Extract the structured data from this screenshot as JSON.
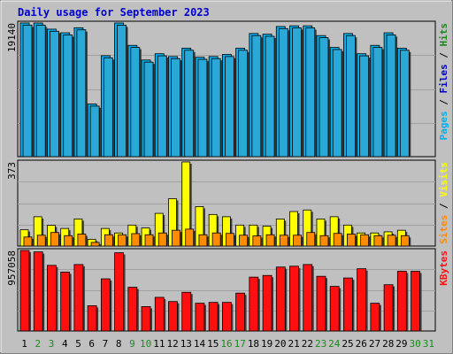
{
  "chart_data": {
    "type": "bar",
    "title": "Daily usage for September 2023",
    "categories": [
      "1",
      "2",
      "3",
      "4",
      "5",
      "6",
      "7",
      "8",
      "9",
      "10",
      "11",
      "12",
      "13",
      "14",
      "15",
      "16",
      "17",
      "18",
      "19",
      "20",
      "21",
      "22",
      "23",
      "24",
      "25",
      "26",
      "27",
      "28",
      "29",
      "30",
      "31"
    ],
    "weekend_days": [
      "2",
      "3",
      "9",
      "10",
      "16",
      "17",
      "23",
      "24",
      "30",
      "31"
    ],
    "colors": {
      "background": "#c0c0c0",
      "title": "#0000cc",
      "weekday_label": "#000000",
      "weekend_label": "#1a8a1a",
      "hits": "#00b0f0",
      "files": "#2aa8d8",
      "pages": "#00b0f0",
      "visits": "#ffff00",
      "sites": "#ff8c00",
      "kbytes": "#ff1010"
    },
    "panels": [
      {
        "id": "hits_files_pages",
        "ymax_label": "19140",
        "ymax": 19140,
        "legend": [
          {
            "text": "Hits",
            "color": "#1a8a1a"
          },
          {
            "text": "Files",
            "color": "#0000cc"
          },
          {
            "text": "Pages",
            "color": "#00b0f0"
          }
        ],
        "series": [
          {
            "name": "Hits",
            "values": [
              19140,
              19140,
              18260,
              17740,
              18460,
              7540,
              14460,
              19140,
              15940,
              13840,
              14740,
              14340,
              15540,
              14240,
              14340,
              14640,
              15540,
              17640,
              17540,
              18640,
              18740,
              18740,
              17340,
              15640,
              17640,
              14740,
              15940,
              17740,
              15540,
              0,
              0
            ]
          },
          {
            "name": "Files",
            "values": [
              18840,
              18840,
              17960,
              17440,
              18160,
              7240,
              14160,
              18840,
              15640,
              13540,
              14440,
              14040,
              15240,
              13940,
              14040,
              14340,
              15240,
              17340,
              17240,
              18340,
              18440,
              18440,
              17040,
              15340,
              17340,
              14440,
              15640,
              17440,
              15240,
              0,
              0
            ]
          }
        ]
      },
      {
        "id": "visits_sites",
        "ymax_label": "373",
        "ymax": 373,
        "legend": [
          {
            "text": "Visits",
            "color": "#ffff00"
          },
          {
            "text": "Sites",
            "color": "#ff8c00"
          }
        ],
        "series": [
          {
            "name": "Visits",
            "values": [
              72,
              130,
              92,
              78,
              120,
              30,
              78,
              58,
              93,
              80,
              145,
              210,
              373,
              175,
              140,
              130,
              93,
              93,
              88,
              120,
              153,
              160,
              120,
              130,
              93,
              58,
              58,
              63,
              70,
              0,
              0
            ]
          },
          {
            "name": "Sites",
            "values": [
              40,
              48,
              60,
              46,
              53,
              16,
              50,
              50,
              55,
              50,
              58,
              70,
              75,
              50,
              58,
              56,
              48,
              45,
              50,
              48,
              48,
              60,
              46,
              56,
              53,
              50,
              46,
              48,
              46,
              0,
              0
            ]
          }
        ]
      },
      {
        "id": "kbytes",
        "ymax_label": "957058",
        "ymax": 957058,
        "legend": [
          {
            "text": "KBytes",
            "color": "#ff1010"
          }
        ],
        "series": [
          {
            "name": "KBytes",
            "values": [
              957058,
              940000,
              780000,
              700000,
              790000,
              300000,
              620000,
              930000,
              520000,
              290000,
              400000,
              350000,
              460000,
              330000,
              340000,
              340000,
              450000,
              640000,
              660000,
              760000,
              770000,
              790000,
              650000,
              530000,
              630000,
              740000,
              330000,
              550000,
              710000,
              710000,
              0
            ]
          }
        ]
      }
    ]
  }
}
